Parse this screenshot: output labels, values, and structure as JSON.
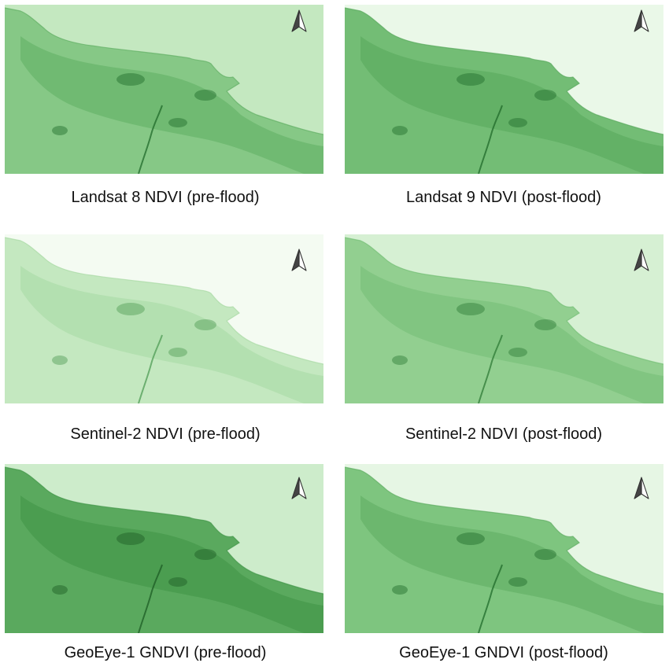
{
  "panels": [
    {
      "caption": "Landsat 8 NDVI (pre-flood)",
      "land": "#86c886",
      "land_dark": "#5fae62",
      "sea": "#c4e8c0",
      "marks": "#1f6a2a"
    },
    {
      "caption": "Landsat 9 NDVI (post-flood)",
      "land": "#73bd75",
      "land_dark": "#55a75a",
      "sea": "#eaf8e8",
      "marks": "#1f6a2a"
    },
    {
      "caption": "Sentinel-2 NDVI (pre-flood)",
      "land": "#c4e8c0",
      "land_dark": "#a6d9a2",
      "sea": "#f4fbf2",
      "marks": "#4f9c55"
    },
    {
      "caption": "Sentinel-2 NDVI (post-flood)",
      "land": "#92cf90",
      "land_dark": "#72bd74",
      "sea": "#d6f0d3",
      "marks": "#2d7a35"
    },
    {
      "caption": "GeoEye-1 GNDVI (pre-flood)",
      "land": "#5aa95e",
      "land_dark": "#3f9446",
      "sea": "#cdeccb",
      "marks": "#1c5c24"
    },
    {
      "caption": "GeoEye-1 GNDVI (post-flood)",
      "land": "#7ec57f",
      "land_dark": "#5cab60",
      "sea": "#e6f6e4",
      "marks": "#1f6a2a"
    }
  ],
  "icons": {
    "north_arrow": "north-arrow-icon"
  }
}
